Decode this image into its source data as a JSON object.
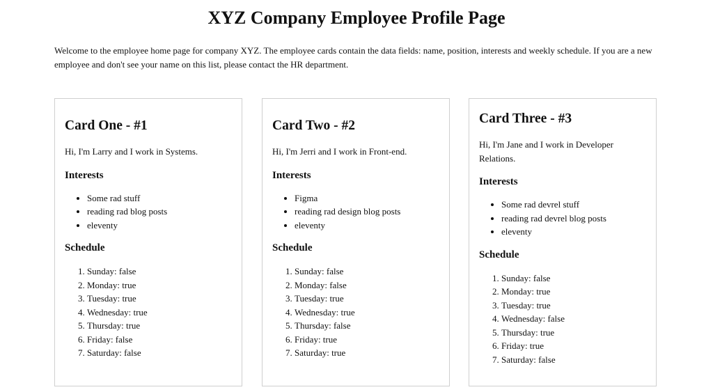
{
  "page": {
    "title": "XYZ Company Employee Profile Page",
    "intro": "Welcome to the employee home page for company XYZ. The employee cards contain the data fields: name, position, interests and weekly schedule. If you are a new employee and don't see your name on this list, please contact the HR department."
  },
  "labels": {
    "interests": "Interests",
    "schedule": "Schedule"
  },
  "cards": [
    {
      "heading": "Card One - #1",
      "bio": "Hi, I'm Larry and I work in Systems.",
      "interests": [
        "Some rad stuff",
        "reading rad blog posts",
        "eleventy"
      ],
      "schedule": [
        "Sunday: false",
        "Monday: true",
        "Tuesday: true",
        "Wednesday: true",
        "Thursday: true",
        "Friday: false",
        "Saturday: false"
      ]
    },
    {
      "heading": "Card Two - #2",
      "bio": "Hi, I'm Jerri and I work in Front-end.",
      "interests": [
        "Figma",
        "reading rad design blog posts",
        "eleventy"
      ],
      "schedule": [
        "Sunday: false",
        "Monday: false",
        "Tuesday: true",
        "Wednesday: true",
        "Thursday: false",
        "Friday: true",
        "Saturday: true"
      ]
    },
    {
      "heading": "Card Three - #3",
      "bio": "Hi, I'm Jane and I work in Developer Relations.",
      "interests": [
        "Some rad devrel stuff",
        "reading rad devrel blog posts",
        "eleventy"
      ],
      "schedule": [
        "Sunday: false",
        "Monday: true",
        "Tuesday: true",
        "Wednesday: false",
        "Thursday: true",
        "Friday: true",
        "Saturday: false"
      ]
    }
  ]
}
